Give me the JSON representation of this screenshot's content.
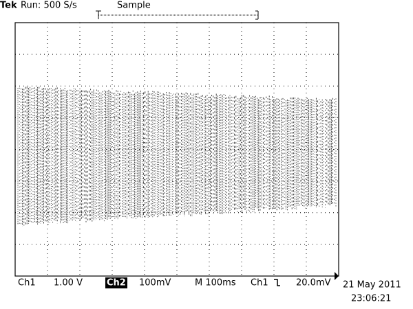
{
  "header": {
    "brand": "Tek",
    "status": "Run: 500 S/s",
    "mode": "Sample"
  },
  "footer": {
    "ch1": "Ch1",
    "ch1_scale": "1.00 V",
    "ch2": "Ch2",
    "ch2_scale": "100mV",
    "timebase": "M 100ms",
    "trigger_source": "Ch1",
    "trigger_level": "20.0mV",
    "date": "21 May 2011",
    "time": "23:06:21"
  }
}
